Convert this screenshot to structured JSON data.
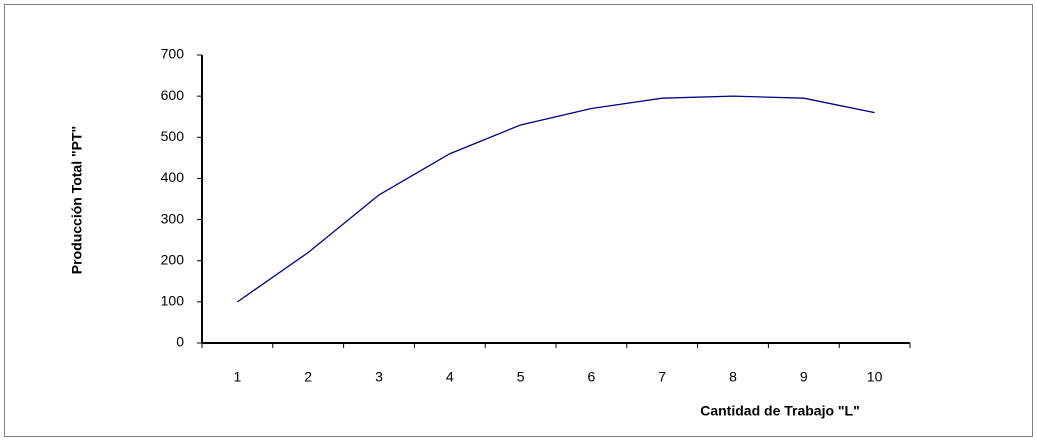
{
  "chart_data": {
    "type": "line",
    "xlabel": "Cantidad de Trabajo \"L\"",
    "ylabel": "Producción Total \"PT\"",
    "categories": [
      "1",
      "2",
      "3",
      "4",
      "5",
      "6",
      "7",
      "8",
      "9",
      "10"
    ],
    "values": [
      100,
      220,
      360,
      460,
      530,
      570,
      595,
      600,
      595,
      560
    ],
    "color": "#000080",
    "ylim": [
      0,
      700
    ],
    "yticks": [
      0,
      100,
      200,
      300,
      400,
      500,
      600,
      700
    ],
    "grid": false
  }
}
